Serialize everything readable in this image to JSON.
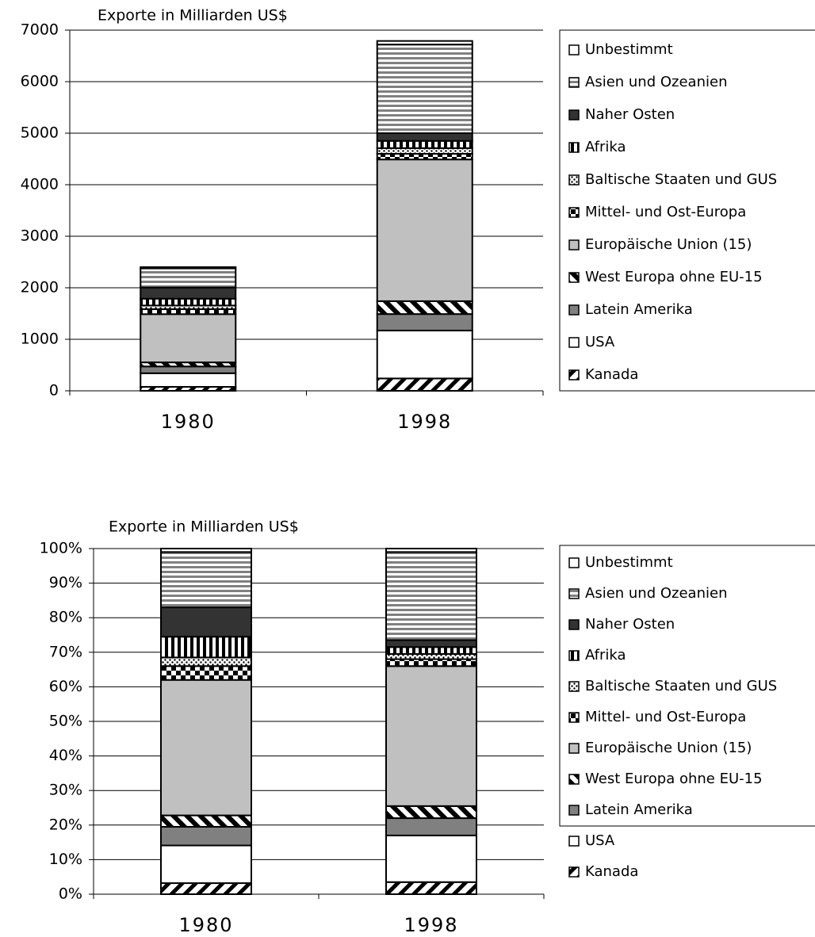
{
  "chart_data": [
    {
      "type": "bar",
      "stacked": true,
      "grid": true,
      "title": "Exporte in Milliarden US$",
      "categories": [
        "1980",
        "1998"
      ],
      "ylim": [
        0,
        7000
      ],
      "yticks": [
        0,
        1000,
        2000,
        3000,
        4000,
        5000,
        6000,
        7000
      ],
      "series": [
        {
          "name": "Kanada",
          "color": "#000000",
          "pattern": "diagonal",
          "values": [
            77,
            240
          ]
        },
        {
          "name": "USA",
          "color": "#ffffff",
          "pattern": "solid",
          "values": [
            264,
            930
          ]
        },
        {
          "name": "Latein Amerika",
          "color": "#808080",
          "pattern": "solid",
          "values": [
            132,
            320
          ]
        },
        {
          "name": "West Europa ohne EU-15",
          "color": "#000000",
          "pattern": "diagonal-wide",
          "values": [
            79,
            250
          ]
        },
        {
          "name": "Europäische Union (15)",
          "color": "#c0c0c0",
          "pattern": "solid",
          "values": [
            936,
            2750
          ]
        },
        {
          "name": "Mittel- und Ost-Europa",
          "color": "#000000",
          "pattern": "checker",
          "values": [
            96,
            110
          ]
        },
        {
          "name": "Baltische Staaten und GUS",
          "color": "#000000",
          "pattern": "dots",
          "values": [
            72,
            110
          ]
        },
        {
          "name": "Afrika",
          "color": "#000000",
          "pattern": "vstripes",
          "values": [
            132,
            140
          ]
        },
        {
          "name": "Naher Osten",
          "color": "#333333",
          "pattern": "solid",
          "values": [
            216,
            150
          ]
        },
        {
          "name": "Asien und Ozeanien",
          "color": "#808080",
          "pattern": "hstripes",
          "values": [
            372,
            1720
          ]
        },
        {
          "name": "Unbestimmt",
          "color": "#ffffff",
          "pattern": "solid",
          "values": [
            24,
            70
          ]
        }
      ]
    },
    {
      "type": "bar",
      "stacked": true,
      "grid": true,
      "title": "Exporte in Milliarden US$",
      "categories": [
        "1980",
        "1998"
      ],
      "ylim": [
        0,
        100
      ],
      "yticks": [
        {
          "value": 0,
          "label": "0%"
        },
        {
          "value": 10,
          "label": "10%"
        },
        {
          "value": 20,
          "label": "20%"
        },
        {
          "value": 30,
          "label": "30%"
        },
        {
          "value": 40,
          "label": "40%"
        },
        {
          "value": 50,
          "label": "50%"
        },
        {
          "value": 60,
          "label": "60%"
        },
        {
          "value": 70,
          "label": "70%"
        },
        {
          "value": 80,
          "label": "80%"
        },
        {
          "value": 90,
          "label": "90%"
        },
        {
          "value": 100,
          "label": "100%"
        }
      ],
      "series": [
        {
          "name": "Kanada",
          "color": "#000000",
          "pattern": "diagonal",
          "values": [
            3.2,
            3.5
          ]
        },
        {
          "name": "USA",
          "color": "#ffffff",
          "pattern": "solid",
          "values": [
            10.9,
            13.5
          ]
        },
        {
          "name": "Latein Amerika",
          "color": "#808080",
          "pattern": "solid",
          "values": [
            5.4,
            5
          ]
        },
        {
          "name": "West Europa ohne EU-15",
          "color": "#000000",
          "pattern": "diagonal-wide",
          "values": [
            3.3,
            3.5
          ]
        },
        {
          "name": "Europäische Union (15)",
          "color": "#c0c0c0",
          "pattern": "solid",
          "values": [
            39.2,
            40.5
          ]
        },
        {
          "name": "Mittel- und Ost-Europa",
          "color": "#000000",
          "pattern": "checker",
          "values": [
            4,
            2
          ]
        },
        {
          "name": "Baltische Staaten und GUS",
          "color": "#000000",
          "pattern": "dots",
          "values": [
            2.5,
            1.5
          ]
        },
        {
          "name": "Afrika",
          "color": "#000000",
          "pattern": "vstripes",
          "values": [
            6,
            2
          ]
        },
        {
          "name": "Naher Osten",
          "color": "#333333",
          "pattern": "solid",
          "values": [
            8.5,
            2
          ]
        },
        {
          "name": "Asien und Ozeanien",
          "color": "#808080",
          "pattern": "hstripes",
          "values": [
            16,
            25.5
          ]
        },
        {
          "name": "Unbestimmt",
          "color": "#ffffff",
          "pattern": "solid",
          "values": [
            1,
            1
          ]
        }
      ]
    }
  ]
}
